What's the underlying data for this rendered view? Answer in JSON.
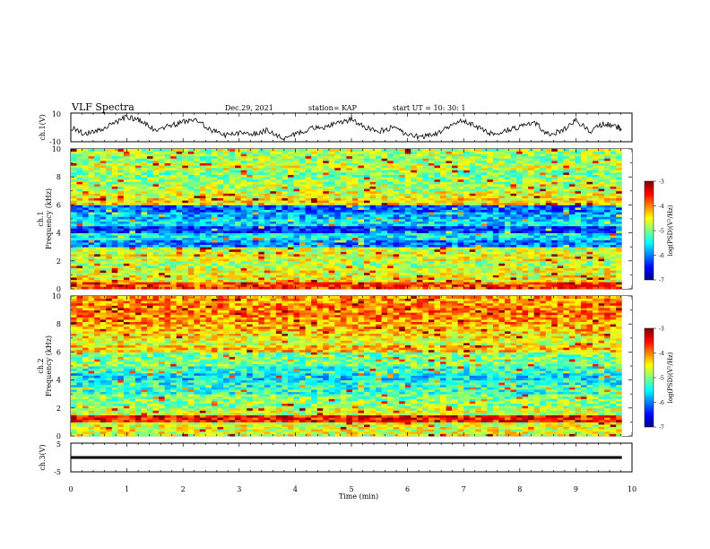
{
  "header": {
    "title": "VLF Spectra",
    "date": "Dec.29, 2021",
    "station": "station= KAP",
    "start_ut": "start  UT  =   10: 30: 1"
  },
  "panels": {
    "ch1_wave": {
      "ylabel": "ch.1(V)",
      "ytick_labels": [
        "10",
        "-10"
      ],
      "ylim": [
        -10,
        10
      ]
    },
    "ch1_spec": {
      "ylabel_line1": "ch.1",
      "ylabel_line2": "Frequency (kHz)",
      "ytick_labels": [
        "0",
        "2",
        "4",
        "6",
        "8",
        "10"
      ],
      "ylim": [
        0,
        10
      ]
    },
    "ch2_spec": {
      "ylabel_line1": "ch.2",
      "ylabel_line2": "Frequency (kHz)",
      "ytick_labels": [
        "0",
        "2",
        "4",
        "6",
        "8",
        "10"
      ],
      "ylim": [
        0,
        10
      ]
    },
    "ch3_wave": {
      "ylabel": "ch.3(V)",
      "ytick_labels": [
        "5",
        "-5"
      ],
      "ylim": [
        -5,
        5
      ]
    }
  },
  "xaxis": {
    "label": "Time (min)",
    "tick_labels": [
      "0",
      "1",
      "2",
      "3",
      "4",
      "5",
      "6",
      "7",
      "8",
      "9",
      "10"
    ],
    "xlim": [
      0,
      10
    ]
  },
  "colorbars": [
    {
      "label": "log(PSD)(V²/Hz)",
      "tick_labels": [
        "-3",
        "-4",
        "-5",
        "-6",
        "-7"
      ]
    },
    {
      "label": "log(PSD)(V²/Hz)",
      "tick_labels": [
        "-3",
        "-4",
        "-5",
        "-6",
        "-7"
      ]
    }
  ],
  "colormap": [
    "#000090",
    "#0000ff",
    "#0080ff",
    "#00ffff",
    "#80ff80",
    "#ffff00",
    "#ff8000",
    "#ff0000",
    "#800000"
  ],
  "chart_data": [
    {
      "type": "line",
      "name_panel": "ch.1 waveform",
      "xlim": [
        0,
        10
      ],
      "ylim": [
        -10,
        10
      ],
      "x": [
        0,
        0.25,
        0.5,
        0.75,
        1.0,
        1.25,
        1.5,
        1.75,
        2.0,
        2.25,
        2.5,
        2.75,
        3.0,
        3.25,
        3.5,
        3.75,
        4.0,
        4.25,
        4.5,
        4.75,
        5.0,
        5.25,
        5.5,
        5.75,
        6.0,
        6.25,
        6.5,
        6.75,
        7.0,
        7.25,
        7.5,
        7.75,
        8.0,
        8.25,
        8.5,
        8.75,
        9.0,
        9.25,
        9.5,
        9.75,
        9.82
      ],
      "y": [
        0,
        -5,
        -2,
        3,
        8,
        5,
        -2,
        1,
        4,
        5,
        -2,
        -6,
        -4,
        -5,
        -2,
        -8,
        -5,
        -1,
        0,
        3,
        6,
        0,
        -3,
        0,
        -6,
        -7,
        -5,
        1,
        5,
        0,
        -5,
        -2,
        0,
        4,
        -5,
        -3,
        5,
        -3,
        3,
        0,
        -2
      ]
    },
    {
      "type": "heatmap",
      "name_panel": "ch.1 spectrogram",
      "xlim": [
        0,
        10
      ],
      "ylim": [
        0,
        10
      ],
      "zlim": [
        -7,
        -3
      ],
      "freq_kHz": [
        0.25,
        0.75,
        1.25,
        1.75,
        2.25,
        2.75,
        3.25,
        3.75,
        4.25,
        4.75,
        5.25,
        5.75,
        6.25,
        6.75,
        7.25,
        7.75,
        8.25,
        8.75,
        9.25,
        9.75
      ],
      "log_psd_profile": [
        -3.8,
        -4.5,
        -4.6,
        -4.8,
        -4.6,
        -4.7,
        -6.0,
        -5.5,
        -6.3,
        -5.6,
        -5.8,
        -6.1,
        -4.4,
        -4.6,
        -4.8,
        -4.9,
        -5.0,
        -4.7,
        -4.9,
        -4.8
      ]
    },
    {
      "type": "heatmap",
      "name_panel": "ch.2 spectrogram",
      "xlim": [
        0,
        10
      ],
      "ylim": [
        0,
        10
      ],
      "zlim": [
        -7,
        -3
      ],
      "freq_kHz": [
        0.25,
        0.75,
        1.25,
        1.75,
        2.25,
        2.75,
        3.25,
        3.75,
        4.25,
        4.75,
        5.25,
        5.75,
        6.25,
        6.75,
        7.25,
        7.75,
        8.25,
        8.75,
        9.25,
        9.75
      ],
      "log_psd_profile": [
        -4.6,
        -4.6,
        -3.6,
        -4.7,
        -4.9,
        -5.0,
        -5.3,
        -5.4,
        -5.6,
        -5.3,
        -5.0,
        -5.0,
        -4.3,
        -4.6,
        -4.4,
        -4.2,
        -4.1,
        -4.0,
        -4.0,
        -4.1
      ]
    },
    {
      "type": "line",
      "name_panel": "ch.3 waveform",
      "xlim": [
        0,
        10
      ],
      "ylim": [
        -5,
        5
      ],
      "x": [
        0,
        9.82
      ],
      "y_band": [
        -0.5,
        0.5
      ]
    }
  ]
}
